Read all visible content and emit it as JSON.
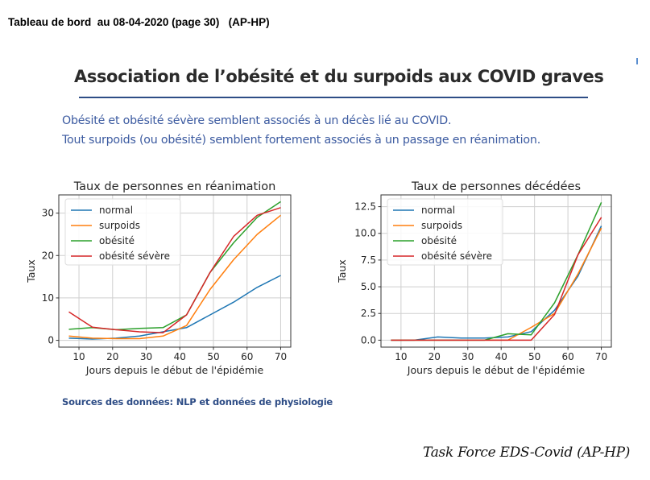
{
  "header": {
    "title": "Tableau de bord  au 08-04-2020 (page 30)   (AP-HP)"
  },
  "slide": {
    "title": "Association de l’obésité et du surpoids aux COVID graves",
    "subtitle_lines": [
      "Obésité et obésité sévère semblent associés à un décès lié au COVID.",
      "Tout surpoids (ou obésité) semblent fortement  associés à un passage en réanimation."
    ],
    "sources": "Sources des données: NLP et données de physiologie",
    "footer": "Task Force EDS-Covid (AP-HP)"
  },
  "colors": {
    "normal": "#1f77b4",
    "surpoids": "#ff7f0e",
    "obesite": "#2ca02c",
    "obesite_severe": "#d62728",
    "accent": "#2e4d86",
    "subtitle": "#3b5aa0"
  },
  "chart_data": [
    {
      "type": "line",
      "title": "Taux de personnes en réanimation",
      "xlabel": "Jours depuis le début de l'épidémie",
      "ylabel": "Taux",
      "x": [
        7,
        14,
        21,
        28,
        35,
        42,
        49,
        56,
        63,
        70
      ],
      "xticks": [
        10,
        20,
        30,
        40,
        50,
        60,
        70
      ],
      "yticks": [
        0,
        10,
        20,
        30
      ],
      "ytick_labels": [
        "0",
        "10",
        "20",
        "30"
      ],
      "xlim": [
        4,
        73
      ],
      "ylim": [
        -1.6,
        34.3
      ],
      "grid": true,
      "legend_position": "upper left",
      "series": [
        {
          "name": "normal",
          "color": "#1f77b4",
          "values": [
            0.5,
            0.3,
            0.5,
            1.0,
            2.0,
            3.0,
            6.0,
            9.0,
            12.5,
            15.3
          ]
        },
        {
          "name": "surpoids",
          "color": "#ff7f0e",
          "values": [
            1.0,
            0.5,
            0.4,
            0.4,
            1.0,
            3.5,
            12.0,
            19.0,
            25.0,
            29.5
          ]
        },
        {
          "name": "obésité",
          "color": "#2ca02c",
          "values": [
            2.6,
            3.0,
            2.5,
            2.8,
            3.0,
            6.0,
            16.0,
            23.0,
            29.0,
            32.7
          ]
        },
        {
          "name": "obésité sévère",
          "color": "#d62728",
          "values": [
            6.7,
            3.1,
            2.5,
            2.0,
            1.8,
            6.0,
            16.0,
            24.5,
            29.5,
            31.3
          ]
        }
      ]
    },
    {
      "type": "line",
      "title": "Taux de personnes décédées",
      "xlabel": "Jours depuis le début de l'épidémie",
      "ylabel": "Taux",
      "x": [
        7,
        14,
        21,
        28,
        35,
        42,
        49,
        56,
        63,
        70
      ],
      "xticks": [
        10,
        20,
        30,
        40,
        50,
        60,
        70
      ],
      "yticks": [
        0,
        2.5,
        5,
        7.5,
        10,
        12.5
      ],
      "ytick_labels": [
        "0.0",
        "2.5",
        "5.0",
        "7.5",
        "10.0",
        "12.5"
      ],
      "xlim": [
        4,
        73
      ],
      "ylim": [
        -0.65,
        13.6
      ],
      "grid": true,
      "legend_position": "upper left",
      "series": [
        {
          "name": "normal",
          "color": "#1f77b4",
          "values": [
            0,
            0,
            0.3,
            0.2,
            0.2,
            0.3,
            0.8,
            2.8,
            6.0,
            10.7
          ]
        },
        {
          "name": "surpoids",
          "color": "#ff7f0e",
          "values": [
            0,
            0,
            0,
            0,
            0,
            0,
            1.2,
            2.5,
            6.2,
            10.5
          ]
        },
        {
          "name": "obésité",
          "color": "#2ca02c",
          "values": [
            0,
            0,
            0,
            0,
            0,
            0.6,
            0.5,
            3.5,
            8.0,
            12.9
          ]
        },
        {
          "name": "obésité sévère",
          "color": "#d62728",
          "values": [
            0,
            0,
            0,
            0,
            0,
            0,
            0,
            2.4,
            8.0,
            11.5
          ]
        }
      ]
    }
  ]
}
